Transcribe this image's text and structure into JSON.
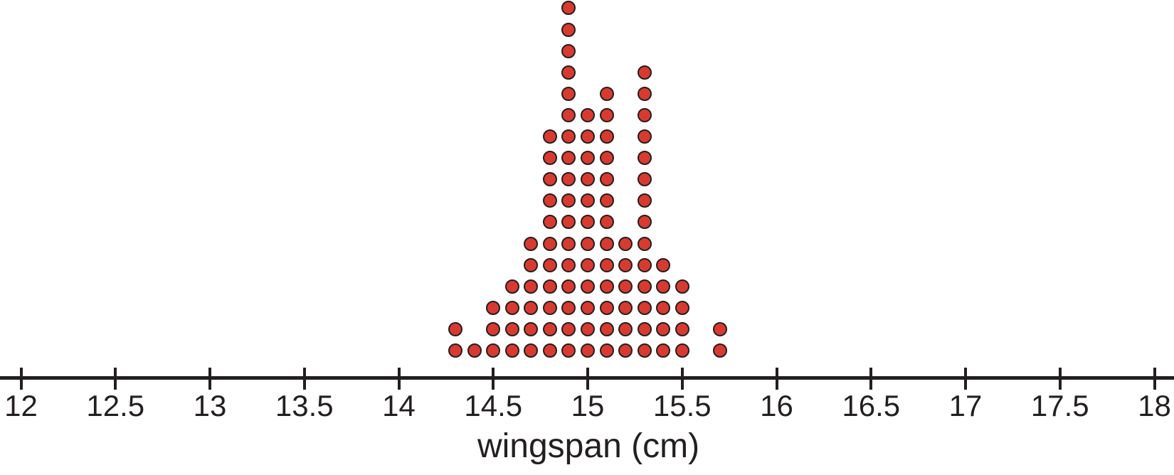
{
  "chart_data": {
    "type": "dot_plot",
    "title": "",
    "xlabel": "wingspan (cm)",
    "x_axis": {
      "min": 12,
      "max": 18,
      "tick_step": 0.5,
      "tick_labels": [
        "12",
        "12.5",
        "13",
        "13.5",
        "14",
        "14.5",
        "15",
        "15.5",
        "16",
        "16.5",
        "17",
        "17.5",
        "18"
      ]
    },
    "value_resolution": 0.1,
    "points": [
      {
        "x": 14.3,
        "count": 2
      },
      {
        "x": 14.4,
        "count": 1
      },
      {
        "x": 14.5,
        "count": 3
      },
      {
        "x": 14.6,
        "count": 4
      },
      {
        "x": 14.7,
        "count": 6
      },
      {
        "x": 14.8,
        "count": 11
      },
      {
        "x": 14.9,
        "count": 17
      },
      {
        "x": 15.0,
        "count": 12
      },
      {
        "x": 15.1,
        "count": 13
      },
      {
        "x": 15.2,
        "count": 6
      },
      {
        "x": 15.3,
        "count": 14
      },
      {
        "x": 15.4,
        "count": 5
      },
      {
        "x": 15.5,
        "count": 4
      },
      {
        "x": 15.7,
        "count": 2
      }
    ],
    "total_points": 100,
    "colors": {
      "dot_fill": "#d93a30",
      "dot_border": "#231f20",
      "axis": "#231f20",
      "background": "#ffffff"
    },
    "legend": "none",
    "grid": false
  }
}
